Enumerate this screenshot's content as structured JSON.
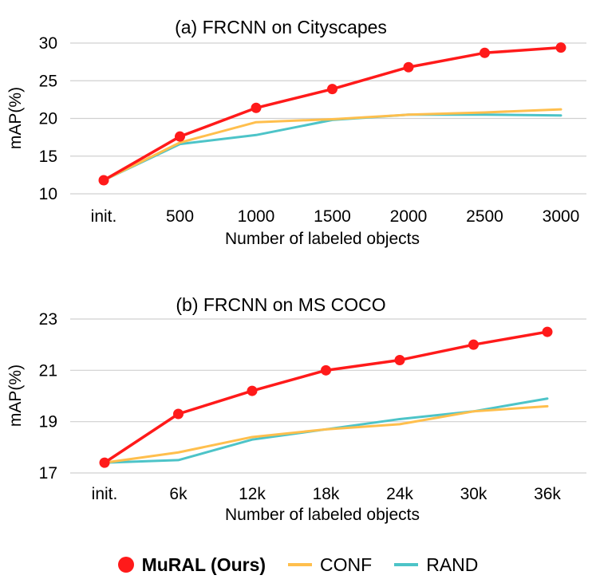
{
  "chart_data": [
    {
      "type": "line",
      "title": "(a) FRCNN on Cityscapes",
      "xlabel": "Number of labeled objects",
      "ylabel": "mAP(%)",
      "categories": [
        "init.",
        "500",
        "1000",
        "1500",
        "2000",
        "2500",
        "3000"
      ],
      "yticks": [
        "10",
        "15",
        "20",
        "25",
        "30"
      ],
      "ylim": [
        10,
        30
      ],
      "series": [
        {
          "name": "MuRAL (Ours)",
          "color": "#ff1a1a",
          "values": [
            11.8,
            17.6,
            21.4,
            23.9,
            26.8,
            28.7,
            29.4
          ]
        },
        {
          "name": "CONF",
          "color": "#ffbf4d",
          "values": [
            11.8,
            16.8,
            19.5,
            19.9,
            20.5,
            20.8,
            21.2
          ]
        },
        {
          "name": "RAND",
          "color": "#4dc4c8",
          "values": [
            11.8,
            16.6,
            17.8,
            19.8,
            20.5,
            20.5,
            20.4
          ]
        }
      ]
    },
    {
      "type": "line",
      "title": "(b) FRCNN on MS COCO",
      "xlabel": "Number of labeled objects",
      "ylabel": "mAP(%)",
      "categories": [
        "init.",
        "6k",
        "12k",
        "18k",
        "24k",
        "30k",
        "36k"
      ],
      "yticks": [
        "17",
        "19",
        "21",
        "23"
      ],
      "ylim": [
        17,
        23
      ],
      "series": [
        {
          "name": "MuRAL (Ours)",
          "color": "#ff1a1a",
          "values": [
            17.4,
            19.3,
            20.2,
            21.0,
            21.4,
            22.0,
            22.5
          ]
        },
        {
          "name": "CONF",
          "color": "#ffbf4d",
          "values": [
            17.4,
            17.8,
            18.4,
            18.7,
            18.9,
            19.4,
            19.6
          ]
        },
        {
          "name": "RAND",
          "color": "#4dc4c8",
          "values": [
            17.4,
            17.5,
            18.3,
            18.7,
            19.1,
            19.4,
            19.9
          ]
        }
      ]
    }
  ],
  "legend": [
    {
      "label": "MuRAL (Ours)",
      "color": "#ff1a1a",
      "marker": "dot"
    },
    {
      "label": "CONF",
      "color": "#ffbf4d",
      "marker": "line"
    },
    {
      "label": "RAND",
      "color": "#4dc4c8",
      "marker": "line"
    }
  ]
}
